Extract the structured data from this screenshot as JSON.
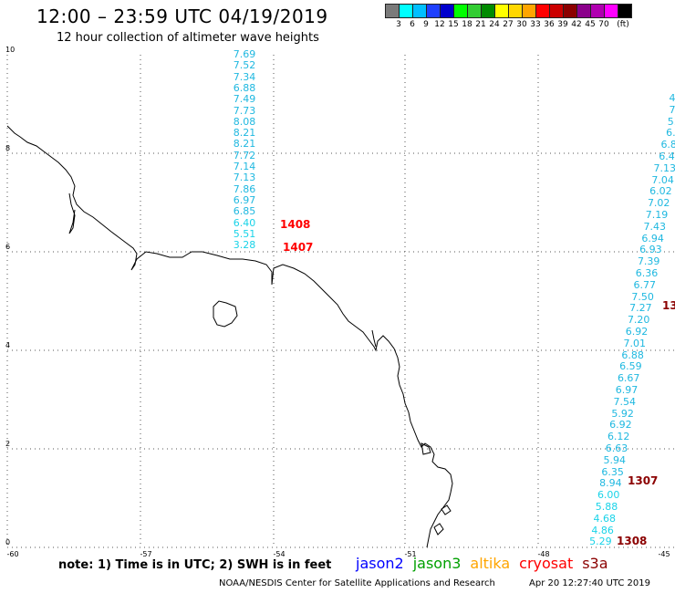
{
  "title": "12:00 – 23:59 UTC 04/19/2019",
  "subtitle": "12 hour collection of altimeter wave heights",
  "legend": {
    "unit": "(ft)",
    "labels": [
      "3",
      "6",
      "9",
      "12",
      "15",
      "18",
      "21",
      "24",
      "27",
      "30",
      "33",
      "36",
      "39",
      "42",
      "45",
      "70"
    ],
    "colors": [
      "#7a7a7a",
      "#00ffff",
      "#00bfff",
      "#1e40ff",
      "#0000cd",
      "#00ff00",
      "#32cd32",
      "#008b00",
      "#ffff00",
      "#ffd700",
      "#ffa500",
      "#ff0000",
      "#cc0000",
      "#8b0000",
      "#8b008b",
      "#b000b0",
      "#ff00ff",
      "#000000"
    ]
  },
  "map": {
    "y_ticks": [
      "0",
      "2",
      "4",
      "6",
      "8",
      "10"
    ],
    "x_ticks": [
      "-60",
      "-57",
      "-54",
      "-51",
      "-48",
      "-45"
    ]
  },
  "track1": {
    "values": [
      "7.69",
      "7.52",
      "7.34",
      "6.88",
      "7.49",
      "7.73",
      "8.08",
      "8.21",
      "8.21",
      "7.72",
      "7.14",
      "7.13",
      "7.86",
      "6.97",
      "6.85",
      "6.40",
      "5.51",
      "3.28"
    ],
    "pass_labels": [
      "1408",
      "1407"
    ]
  },
  "track2": {
    "values": [
      "4",
      "7",
      "5.",
      "6.",
      "6.8",
      "6.4",
      "7.13",
      "7.04",
      "6.02",
      "7.02",
      "7.19",
      "7.43",
      "6.94",
      "6.93",
      "7.39",
      "6.36",
      "6.77",
      "7.50",
      "7.27",
      "7.20",
      "6.92",
      "7.01",
      "6.88",
      "6.59",
      "6.67",
      "6.97",
      "7.54",
      "5.92",
      "6.92",
      "6.12",
      "6.63",
      "5.94",
      "6.35",
      "8.94",
      "6.00",
      "5.88",
      "4.68",
      "4.86",
      "5.29"
    ],
    "pass_labels": [
      "13",
      "1307",
      "1308"
    ]
  },
  "footer": {
    "note": "note: 1) Time is in UTC; 2) SWH is in feet",
    "satellites": [
      {
        "name": "jason2",
        "color": "#0000ff"
      },
      {
        "name": "jason3",
        "color": "#00a000"
      },
      {
        "name": "altika",
        "color": "#ffa500"
      },
      {
        "name": "cryosat",
        "color": "#ff0000"
      },
      {
        "name": "s3a",
        "color": "#8b0000"
      }
    ],
    "credit": "NOAA/NESDIS Center for Satellite Applications and Research",
    "timestamp": "Apr 20 12:27:40 UTC 2019"
  }
}
